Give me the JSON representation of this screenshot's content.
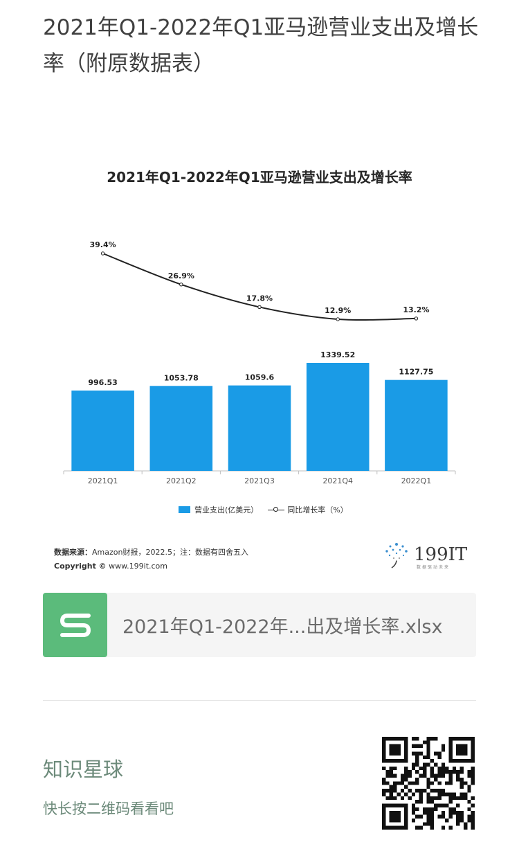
{
  "article": {
    "title": "2021年Q1-2022年Q1亚马逊营业支出及增长率（附原数据表）"
  },
  "chart_data": {
    "type": "bar",
    "title": "2021年Q1-2022年Q1亚马逊营业支出及增长率",
    "categories": [
      "2021Q1",
      "2021Q2",
      "2021Q3",
      "2021Q4",
      "2022Q1"
    ],
    "series": [
      {
        "name": "营业支出(亿美元)",
        "type": "bar",
        "color": "#1a9be6",
        "values": [
          996.53,
          1053.78,
          1059.6,
          1339.52,
          1127.75
        ],
        "labels": [
          "996.53",
          "1053.78",
          "1059.6",
          "1339.52",
          "1127.75"
        ]
      },
      {
        "name": "同比增长率(%)",
        "type": "line",
        "color": "#222222",
        "values": [
          39.4,
          26.9,
          17.8,
          12.9,
          13.2
        ],
        "labels": [
          "39.4%",
          "26.9%",
          "17.8%",
          "12.9%",
          "13.2%"
        ]
      }
    ],
    "legend": {
      "bar_label": "营业支出(亿美元）",
      "line_label": "同比增长率（%）",
      "position": "bottom"
    },
    "grid": false
  },
  "chart_footer": {
    "source_label": "数据来源：",
    "source_text": "Amazon财报，2022.5；注：数据有四舍五入",
    "copyright_label": "Copyright ©",
    "copyright_text": " www.199it.com",
    "brand_name": "199IT",
    "brand_tagline": "数据驱动未来"
  },
  "attachment": {
    "icon": "spreadsheet-s-icon",
    "icon_color": "#5bbb7b",
    "file_name": "2021年Q1-2022年...出及增长率.xlsx"
  },
  "knowledge_planet": {
    "title": "知识星球",
    "subtitle": "快长按二维码看看吧",
    "qr_icon": "qr-code-icon"
  }
}
